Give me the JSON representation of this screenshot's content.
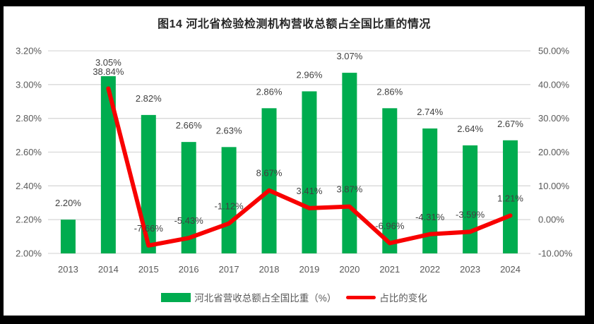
{
  "title": "图14 河北省检验检测机构营收总额占全国比重的情况",
  "colors": {
    "bar": "#00AC4F",
    "line": "#F80000",
    "grid": "#D9D9D9",
    "tick_text": "#595959",
    "label_text": "#404040",
    "panel_bg": "#FFFFFF",
    "frame_bg": "#000000"
  },
  "legend": {
    "bar_label": "河北省营收总额占全国比重（%）",
    "line_label": "占比的变化"
  },
  "chart_data": {
    "type": "bar",
    "subtype": "bar+line combo, dual axis",
    "title": "图14 河北省检验检测机构营收总额占全国比重的情况",
    "categories": [
      "2013",
      "2014",
      "2015",
      "2016",
      "2017",
      "2018",
      "2019",
      "2020",
      "2021",
      "2022",
      "2023",
      "2024"
    ],
    "series": [
      {
        "name": "河北省营收总额占全国比重（%）",
        "type": "bar",
        "axis": "left",
        "color": "#00AC4F",
        "values": [
          2.2,
          3.05,
          2.82,
          2.66,
          2.63,
          2.86,
          2.96,
          3.07,
          2.86,
          2.74,
          2.64,
          2.67
        ],
        "labels": [
          "2.20%",
          "3.05%",
          "2.82%",
          "2.66%",
          "2.63%",
          "2.86%",
          "2.96%",
          "3.07%",
          "2.86%",
          "2.74%",
          "2.64%",
          "2.67%"
        ]
      },
      {
        "name": "占比的变化",
        "type": "line",
        "axis": "right",
        "color": "#F80000",
        "values": [
          null,
          38.84,
          -7.66,
          -5.43,
          -1.12,
          8.67,
          3.41,
          3.87,
          -6.96,
          -4.31,
          -3.59,
          1.21
        ],
        "labels": [
          null,
          "38.84%",
          "-7.66%",
          "-5.43%",
          "-1.12%",
          "8.67%",
          "3.41%",
          "3.87%",
          "-6.96%",
          "-4.31%",
          "-3.59%",
          "1.21%"
        ]
      }
    ],
    "left_axis": {
      "min": 2.0,
      "max": 3.2,
      "step": 0.2,
      "tick_labels": [
        "3.20%",
        "3.00%",
        "2.80%",
        "2.60%",
        "2.40%",
        "2.20%",
        "2.00%"
      ]
    },
    "right_axis": {
      "min": -10,
      "max": 50,
      "step": 10,
      "tick_labels": [
        "50.00%",
        "40.00%",
        "30.00%",
        "20.00%",
        "10.00%",
        "0.00%",
        "-10.00%"
      ]
    },
    "grid": true,
    "legend_position": "bottom"
  }
}
